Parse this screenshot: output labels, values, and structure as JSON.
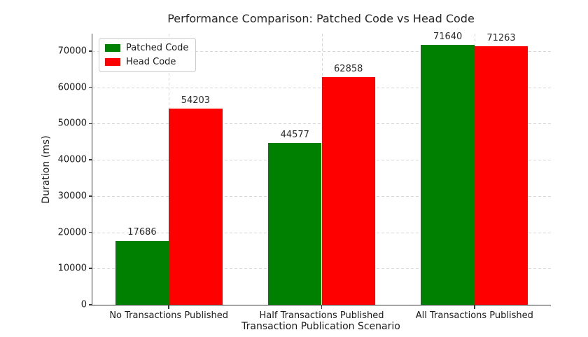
{
  "chart_data": {
    "type": "bar",
    "title": "Performance Comparison: Patched Code vs Head Code",
    "xlabel": "Transaction Publication Scenario",
    "ylabel": "Duration (ms)",
    "categories": [
      "No Transactions Published",
      "Half Transactions Published",
      "All Transactions Published"
    ],
    "series": [
      {
        "name": "Patched Code",
        "color": "#008000",
        "values": [
          17686,
          44577,
          71640
        ]
      },
      {
        "name": "Head Code",
        "color": "#ff0000",
        "values": [
          54203,
          62858,
          71263
        ]
      }
    ],
    "yticks": [
      0,
      10000,
      20000,
      30000,
      40000,
      50000,
      60000,
      70000
    ],
    "ylim": [
      0,
      74800
    ],
    "bar_value_labels": true,
    "grid": "dashed both axes",
    "legend_position": "upper left"
  }
}
